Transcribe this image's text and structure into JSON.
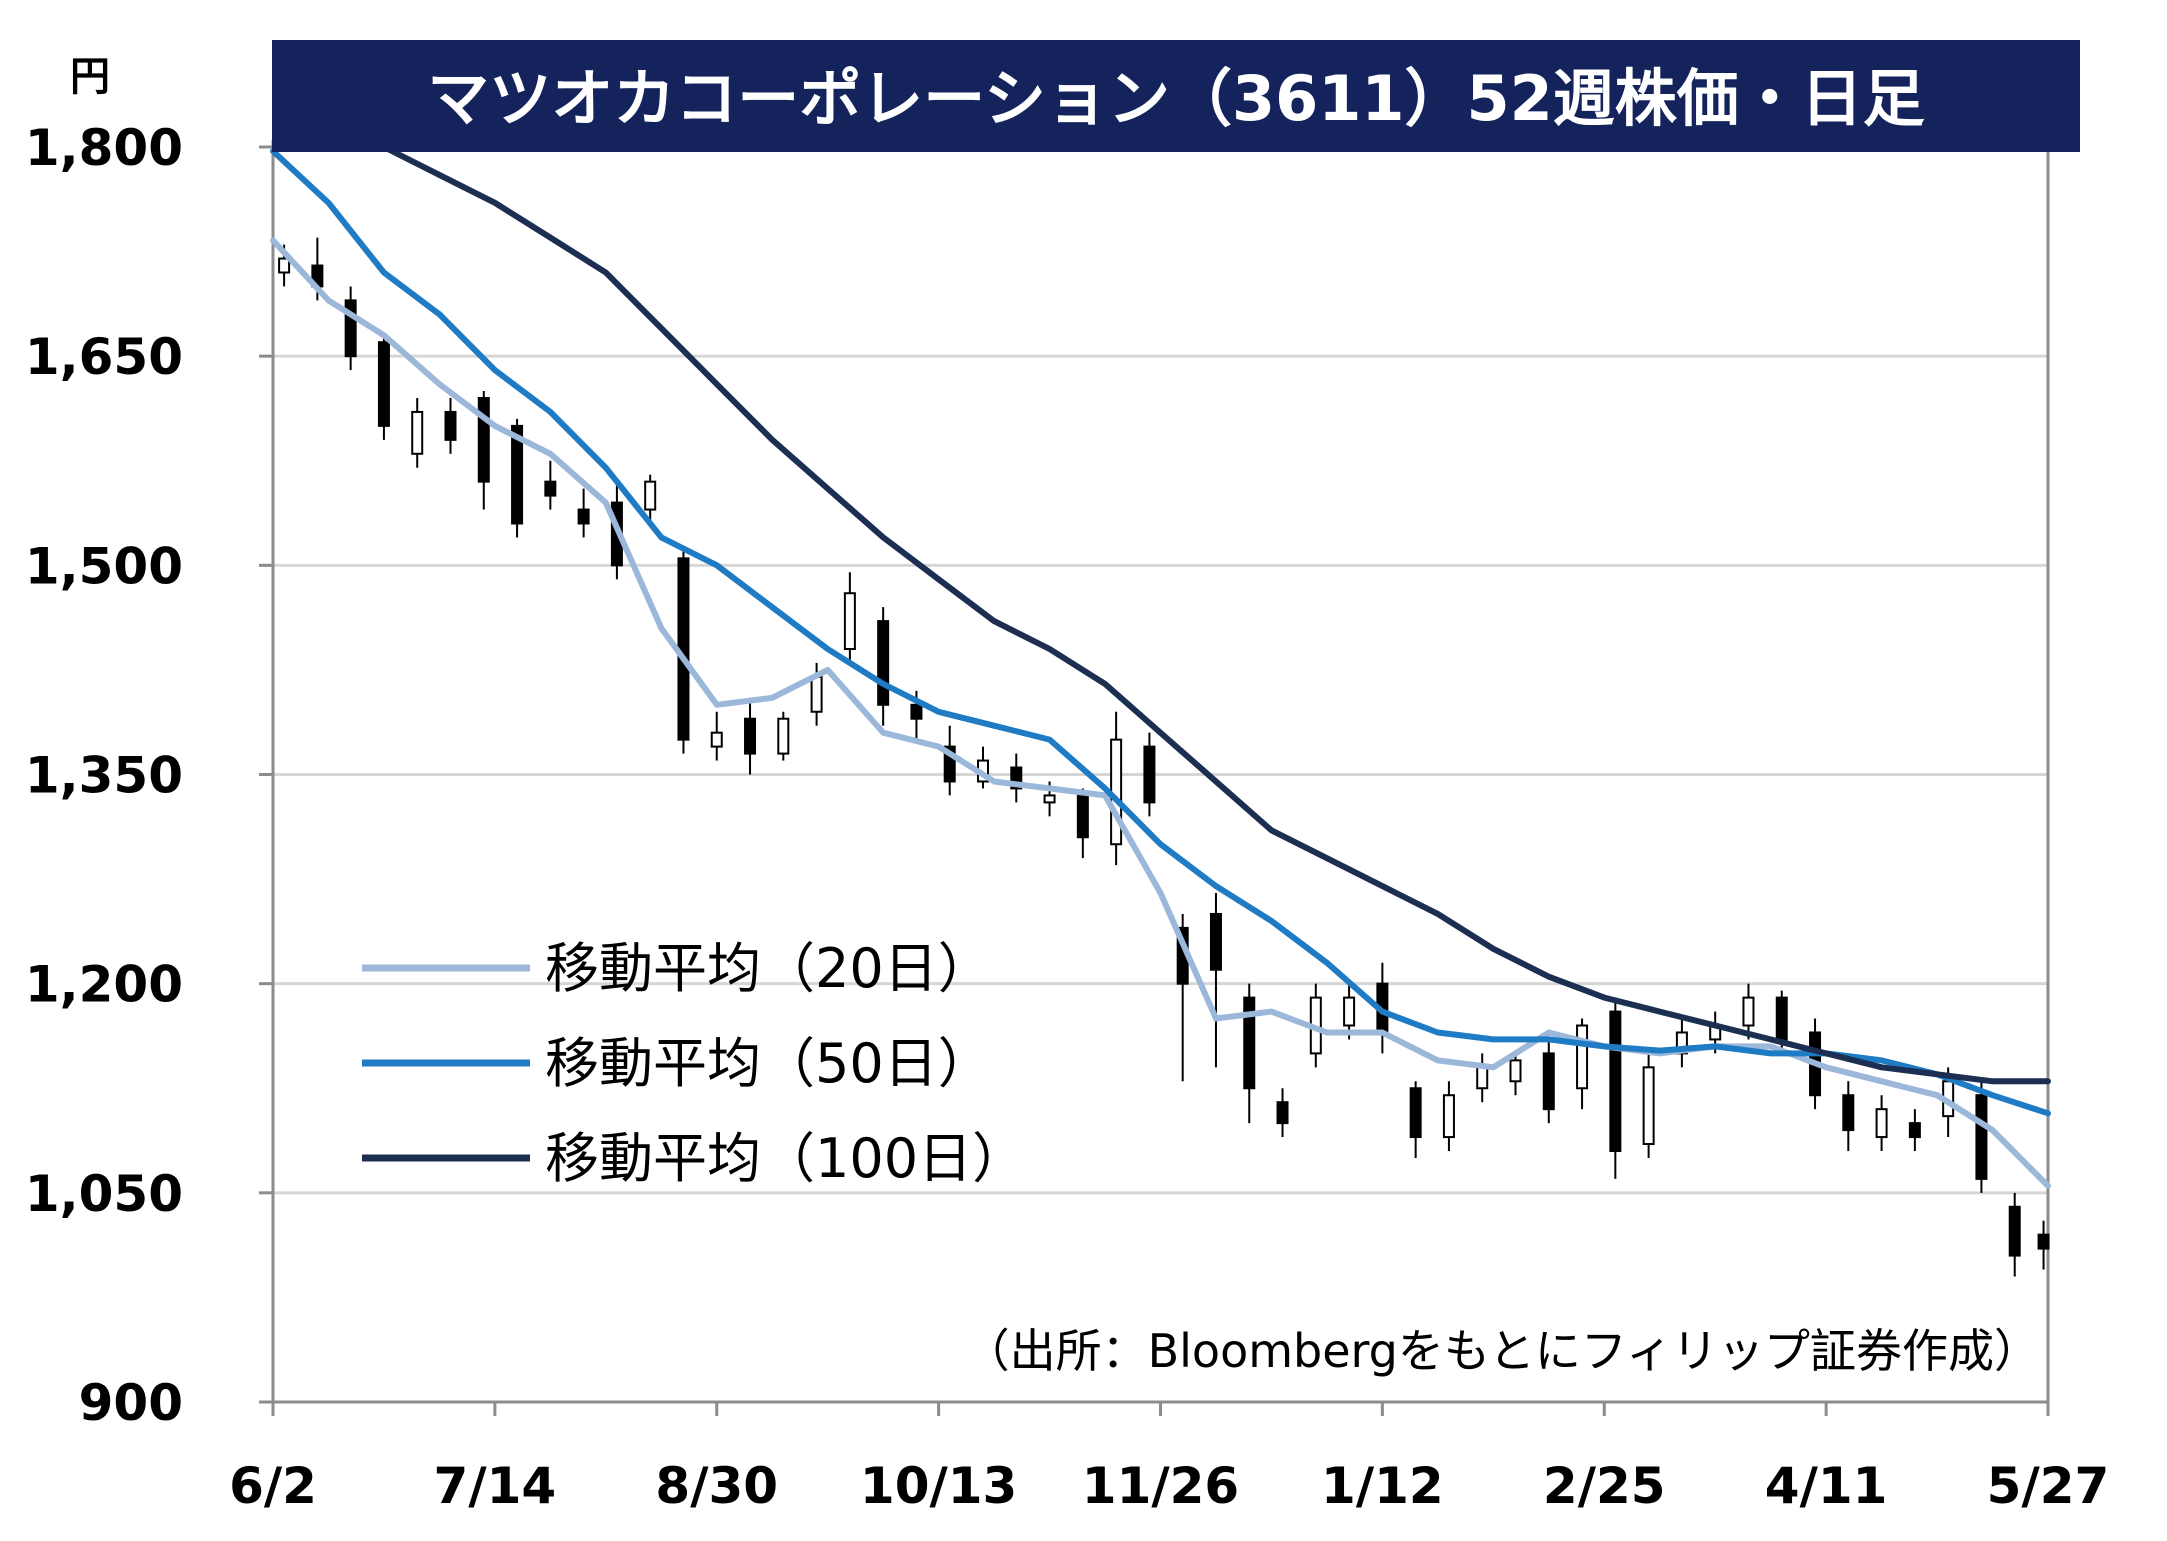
{
  "chart_data": {
    "type": "line",
    "title": "マツオカコーポレーション（3611）52週株価・日足",
    "y_unit": "円",
    "ylim": [
      900,
      1800
    ],
    "yticks": [
      "900",
      "1,050",
      "1,200",
      "1,350",
      "1,500",
      "1,650",
      "1,800"
    ],
    "ytick_values": [
      900,
      1050,
      1200,
      1350,
      1500,
      1650,
      1800
    ],
    "categories": [
      "6/2",
      "7/14",
      "8/30",
      "10/13",
      "11/26",
      "1/12",
      "2/25",
      "4/11",
      "5/27"
    ],
    "grid": true,
    "legend_position": "left-lower",
    "source": "（出所：Bloombergをもとにフィリップ証券作成）",
    "colors": {
      "ma20": "#9bb7d9",
      "ma50": "#1f7bc4",
      "ma100": "#1c2e52",
      "title_bg": "#14235c",
      "grid": "#d6d6d6"
    },
    "series": [
      {
        "name": "移動平均（20日）",
        "x": [
          0,
          0.25,
          0.5,
          0.75,
          1,
          1.25,
          1.5,
          1.75,
          2,
          2.25,
          2.5,
          2.75,
          3,
          3.25,
          3.5,
          3.75,
          4,
          4.25,
          4.5,
          4.75,
          5,
          5.25,
          5.5,
          5.75,
          6,
          6.25,
          6.5,
          6.75,
          7,
          7.25,
          7.5,
          7.75,
          8
        ],
        "values": [
          1733,
          1690,
          1665,
          1630,
          1600,
          1580,
          1545,
          1455,
          1400,
          1405,
          1425,
          1380,
          1370,
          1345,
          1340,
          1335,
          1265,
          1175,
          1180,
          1165,
          1165,
          1145,
          1140,
          1165,
          1155,
          1150,
          1155,
          1155,
          1140,
          1130,
          1120,
          1095,
          1055
        ]
      },
      {
        "name": "移動平均（50日）",
        "x": [
          0,
          0.25,
          0.5,
          0.75,
          1,
          1.25,
          1.5,
          1.75,
          2,
          2.25,
          2.5,
          2.75,
          3,
          3.25,
          3.5,
          3.75,
          4,
          4.25,
          4.5,
          4.75,
          5,
          5.25,
          5.5,
          5.75,
          6,
          6.25,
          6.5,
          6.75,
          7,
          7.25,
          7.5,
          7.75,
          8
        ],
        "values": [
          1797,
          1760,
          1710,
          1680,
          1640,
          1610,
          1570,
          1520,
          1500,
          1470,
          1440,
          1415,
          1395,
          1385,
          1375,
          1340,
          1300,
          1270,
          1245,
          1215,
          1180,
          1165,
          1160,
          1160,
          1155,
          1152,
          1155,
          1150,
          1150,
          1145,
          1135,
          1120,
          1107
        ]
      },
      {
        "name": "移動平均（100日）",
        "x": [
          0.5,
          0.75,
          1,
          1.25,
          1.5,
          1.75,
          2,
          2.25,
          2.5,
          2.75,
          3,
          3.25,
          3.5,
          3.75,
          4,
          4.25,
          4.5,
          4.75,
          5,
          5.25,
          5.5,
          5.75,
          6,
          6.25,
          6.5,
          6.75,
          7,
          7.25,
          7.5,
          7.75,
          8
        ],
        "values": [
          1800,
          1780,
          1760,
          1735,
          1710,
          1670,
          1630,
          1590,
          1555,
          1520,
          1490,
          1460,
          1440,
          1415,
          1380,
          1345,
          1310,
          1290,
          1270,
          1250,
          1225,
          1205,
          1190,
          1180,
          1170,
          1160,
          1150,
          1140,
          1135,
          1130,
          1130
        ]
      }
    ],
    "candlesticks": {
      "note": "approximate daily OHLC, one candle per ~5 trading days",
      "x": [
        0.05,
        0.2,
        0.35,
        0.5,
        0.65,
        0.8,
        0.95,
        1.1,
        1.25,
        1.4,
        1.55,
        1.7,
        1.85,
        2.0,
        2.15,
        2.3,
        2.45,
        2.6,
        2.75,
        2.9,
        3.05,
        3.2,
        3.35,
        3.5,
        3.65,
        3.8,
        3.95,
        4.1,
        4.25,
        4.4,
        4.55,
        4.7,
        4.85,
        5.0,
        5.15,
        5.3,
        5.45,
        5.6,
        5.75,
        5.9,
        6.05,
        6.2,
        6.35,
        6.5,
        6.65,
        6.8,
        6.95,
        7.1,
        7.25,
        7.4,
        7.55,
        7.7,
        7.85,
        7.98
      ],
      "open": [
        1710,
        1715,
        1690,
        1660,
        1580,
        1610,
        1620,
        1600,
        1560,
        1540,
        1545,
        1540,
        1505,
        1370,
        1390,
        1365,
        1395,
        1440,
        1460,
        1400,
        1370,
        1345,
        1355,
        1330,
        1335,
        1300,
        1370,
        1240,
        1250,
        1190,
        1115,
        1150,
        1170,
        1200,
        1125,
        1090,
        1125,
        1130,
        1150,
        1125,
        1180,
        1085,
        1150,
        1160,
        1170,
        1190,
        1165,
        1120,
        1090,
        1100,
        1105,
        1120,
        1040,
        1020
      ],
      "close": [
        1720,
        1700,
        1650,
        1600,
        1610,
        1590,
        1560,
        1530,
        1550,
        1530,
        1500,
        1560,
        1375,
        1380,
        1365,
        1390,
        1420,
        1480,
        1400,
        1390,
        1345,
        1360,
        1340,
        1335,
        1305,
        1375,
        1330,
        1200,
        1210,
        1125,
        1100,
        1190,
        1190,
        1165,
        1090,
        1120,
        1140,
        1145,
        1110,
        1170,
        1080,
        1140,
        1165,
        1170,
        1190,
        1160,
        1120,
        1095,
        1110,
        1090,
        1130,
        1060,
        1005,
        1010
      ],
      "high": [
        1730,
        1735,
        1700,
        1665,
        1620,
        1620,
        1625,
        1605,
        1575,
        1555,
        1560,
        1565,
        1510,
        1395,
        1405,
        1395,
        1430,
        1495,
        1470,
        1410,
        1385,
        1370,
        1365,
        1345,
        1340,
        1395,
        1380,
        1250,
        1265,
        1200,
        1125,
        1200,
        1200,
        1215,
        1130,
        1130,
        1150,
        1150,
        1160,
        1175,
        1190,
        1150,
        1175,
        1180,
        1200,
        1195,
        1175,
        1130,
        1120,
        1110,
        1140,
        1130,
        1050,
        1030
      ],
      "low": [
        1700,
        1690,
        1640,
        1590,
        1570,
        1580,
        1540,
        1520,
        1540,
        1520,
        1490,
        1530,
        1365,
        1360,
        1350,
        1360,
        1385,
        1430,
        1385,
        1375,
        1335,
        1340,
        1330,
        1320,
        1290,
        1285,
        1320,
        1130,
        1140,
        1100,
        1090,
        1140,
        1160,
        1150,
        1075,
        1080,
        1115,
        1120,
        1100,
        1110,
        1060,
        1075,
        1140,
        1150,
        1160,
        1150,
        1110,
        1080,
        1080,
        1080,
        1090,
        1050,
        990,
        995
      ]
    }
  }
}
